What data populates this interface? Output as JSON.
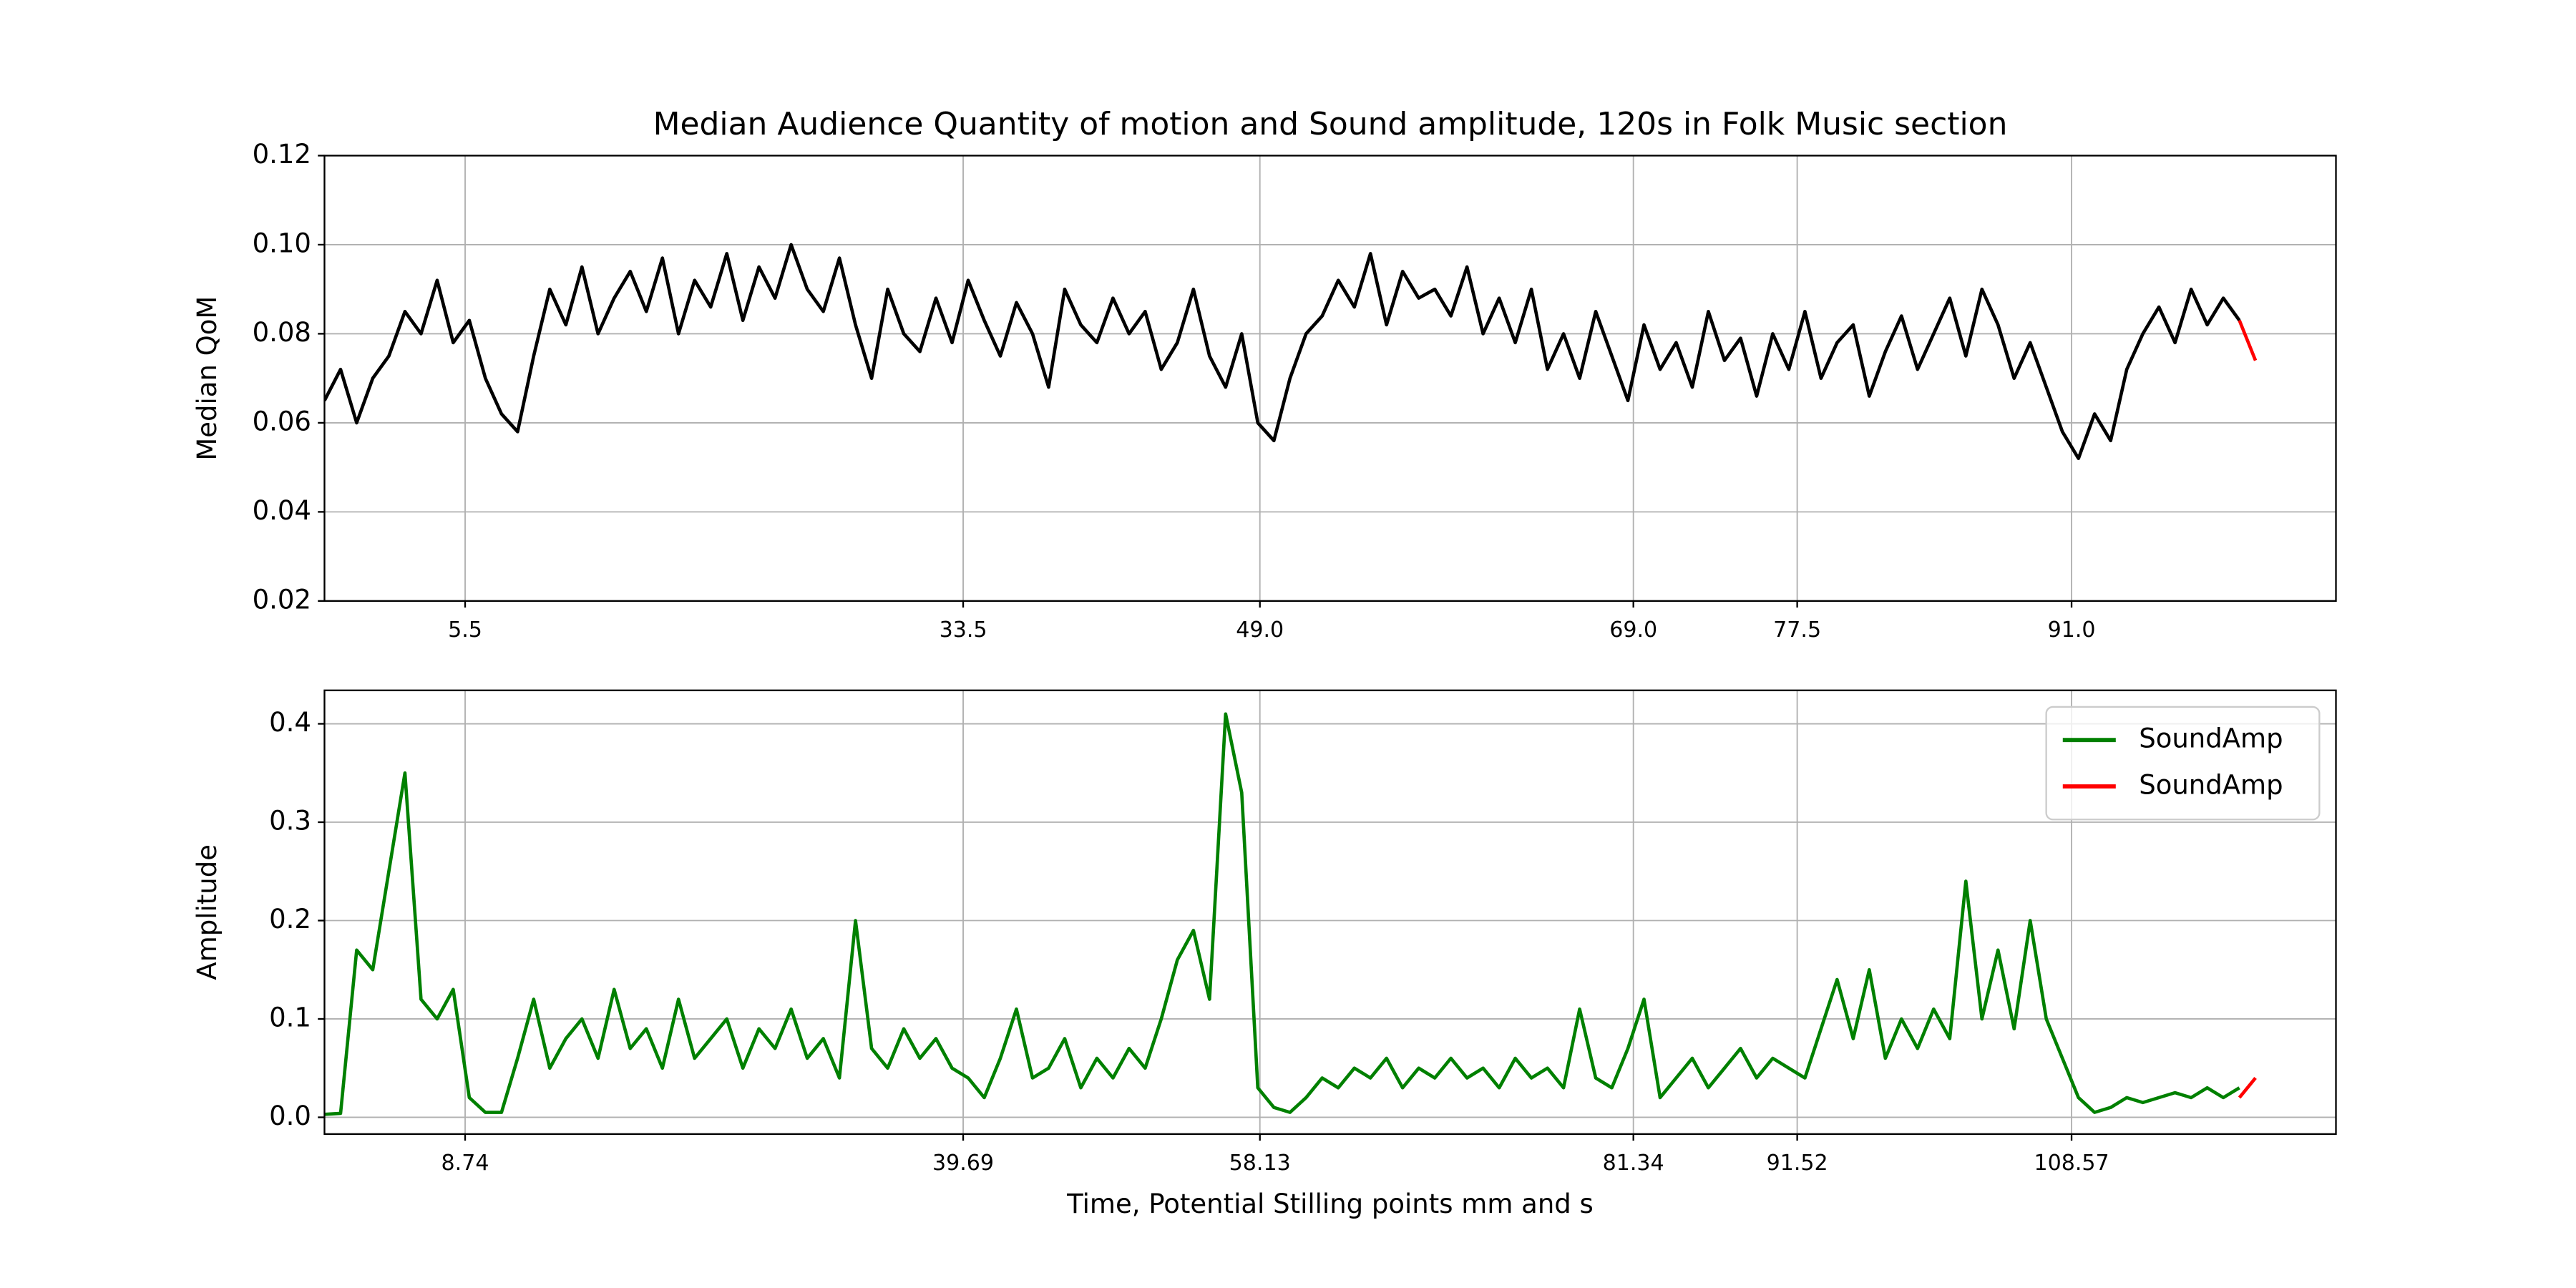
{
  "chart_data": [
    {
      "type": "line",
      "title": "Median Audience Quantity of motion and Sound amplitude, 120s in Folk Music section",
      "ylabel": "Median QoM",
      "xlim": [
        0,
        125
      ],
      "ylim": [
        0.02,
        0.12
      ],
      "xticks": [
        {
          "value": 8.74,
          "label": "5.5"
        },
        {
          "value": 39.69,
          "label": "33.5"
        },
        {
          "value": 58.13,
          "label": "49.0"
        },
        {
          "value": 81.34,
          "label": "69.0"
        },
        {
          "value": 91.52,
          "label": "77.5"
        },
        {
          "value": 108.57,
          "label": "91.0"
        }
      ],
      "yticks": [
        0.02,
        0.04,
        0.06,
        0.08,
        {
          "value": 0.1,
          "label": "0.10"
        },
        0.12
      ],
      "grid": true,
      "series": [
        {
          "color": "#000000",
          "x": [
            0,
            1,
            2,
            3,
            4,
            5,
            6,
            7,
            8,
            9,
            10,
            11,
            12,
            13,
            14,
            15,
            16,
            17,
            18,
            19,
            20,
            21,
            22,
            23,
            24,
            25,
            26,
            27,
            28,
            29,
            30,
            31,
            32,
            33,
            34,
            35,
            36,
            37,
            38,
            39,
            40,
            41,
            42,
            43,
            44,
            45,
            46,
            47,
            48,
            49,
            50,
            51,
            52,
            53,
            54,
            55,
            56,
            57,
            58,
            59,
            60,
            61,
            62,
            63,
            64,
            65,
            66,
            67,
            68,
            69,
            70,
            71,
            72,
            73,
            74,
            75,
            76,
            77,
            78,
            79,
            80,
            81,
            82,
            83,
            84,
            85,
            86,
            87,
            88,
            89,
            90,
            91,
            92,
            93,
            94,
            95,
            96,
            97,
            98,
            99,
            100,
            101,
            102,
            103,
            104,
            105,
            106,
            107,
            108,
            109,
            110,
            111,
            112,
            113,
            114,
            115,
            116,
            117,
            118,
            119
          ],
          "values": [
            0.065,
            0.072,
            0.06,
            0.07,
            0.075,
            0.085,
            0.08,
            0.092,
            0.078,
            0.083,
            0.07,
            0.062,
            0.058,
            0.075,
            0.09,
            0.082,
            0.095,
            0.08,
            0.088,
            0.094,
            0.085,
            0.097,
            0.08,
            0.092,
            0.086,
            0.098,
            0.083,
            0.095,
            0.088,
            0.1,
            0.09,
            0.085,
            0.097,
            0.082,
            0.07,
            0.09,
            0.08,
            0.076,
            0.088,
            0.078,
            0.092,
            0.083,
            0.075,
            0.087,
            0.08,
            0.068,
            0.09,
            0.082,
            0.078,
            0.088,
            0.08,
            0.085,
            0.072,
            0.078,
            0.09,
            0.075,
            0.068,
            0.08,
            0.06,
            0.056,
            0.07,
            0.08,
            0.084,
            0.092,
            0.086,
            0.098,
            0.082,
            0.094,
            0.088,
            0.09,
            0.084,
            0.095,
            0.08,
            0.088,
            0.078,
            0.09,
            0.072,
            0.08,
            0.07,
            0.085,
            0.075,
            0.065,
            0.082,
            0.072,
            0.078,
            0.068,
            0.085,
            0.074,
            0.079,
            0.066,
            0.08,
            0.072,
            0.085,
            0.07,
            0.078,
            0.082,
            0.066,
            0.076,
            0.084,
            0.072,
            0.08,
            0.088,
            0.075,
            0.09,
            0.082,
            0.07,
            0.078,
            0.068,
            0.058,
            0.052,
            0.062,
            0.056,
            0.072,
            0.08,
            0.086,
            0.078,
            0.09,
            0.082,
            0.088,
            0.083
          ]
        },
        {
          "color": "#ff0000",
          "x": [
            119,
            120
          ],
          "values": [
            0.083,
            0.074
          ]
        }
      ]
    },
    {
      "type": "line",
      "xlabel": "Time, Potential Stilling points mm and s",
      "ylabel": "Amplitude",
      "xlim": [
        0,
        125
      ],
      "ylim": [
        -0.017,
        0.434
      ],
      "xticks": [
        8.74,
        39.69,
        58.13,
        81.34,
        91.52,
        108.57
      ],
      "yticks": [
        {
          "value": 0,
          "label": "0.0"
        },
        0.1,
        0.2,
        0.3,
        0.4
      ],
      "grid": true,
      "legend": "upper right",
      "series": [
        {
          "name": "SoundAmp",
          "color": "#008000",
          "x": [
            0,
            1,
            2,
            3,
            4,
            5,
            6,
            7,
            8,
            9,
            10,
            11,
            12,
            13,
            14,
            15,
            16,
            17,
            18,
            19,
            20,
            21,
            22,
            23,
            24,
            25,
            26,
            27,
            28,
            29,
            30,
            31,
            32,
            33,
            34,
            35,
            36,
            37,
            38,
            39,
            40,
            41,
            42,
            43,
            44,
            45,
            46,
            47,
            48,
            49,
            50,
            51,
            52,
            53,
            54,
            55,
            56,
            57,
            58,
            59,
            60,
            61,
            62,
            63,
            64,
            65,
            66,
            67,
            68,
            69,
            70,
            71,
            72,
            73,
            74,
            75,
            76,
            77,
            78,
            79,
            80,
            81,
            82,
            83,
            84,
            85,
            86,
            87,
            88,
            89,
            90,
            91,
            92,
            93,
            94,
            95,
            96,
            97,
            98,
            99,
            100,
            101,
            102,
            103,
            104,
            105,
            106,
            107,
            108,
            109,
            110,
            111,
            112,
            113,
            114,
            115,
            116,
            117,
            118,
            119
          ],
          "values": [
            0.003,
            0.004,
            0.17,
            0.15,
            0.25,
            0.35,
            0.12,
            0.1,
            0.13,
            0.02,
            0.005,
            0.005,
            0.06,
            0.12,
            0.05,
            0.08,
            0.1,
            0.06,
            0.13,
            0.07,
            0.09,
            0.05,
            0.12,
            0.06,
            0.08,
            0.1,
            0.05,
            0.09,
            0.07,
            0.11,
            0.06,
            0.08,
            0.04,
            0.2,
            0.07,
            0.05,
            0.09,
            0.06,
            0.08,
            0.05,
            0.04,
            0.02,
            0.06,
            0.11,
            0.04,
            0.05,
            0.08,
            0.03,
            0.06,
            0.04,
            0.07,
            0.05,
            0.1,
            0.16,
            0.19,
            0.12,
            0.41,
            0.33,
            0.03,
            0.01,
            0.005,
            0.02,
            0.04,
            0.03,
            0.05,
            0.04,
            0.06,
            0.03,
            0.05,
            0.04,
            0.06,
            0.04,
            0.05,
            0.03,
            0.06,
            0.04,
            0.05,
            0.03,
            0.11,
            0.04,
            0.03,
            0.07,
            0.12,
            0.02,
            0.04,
            0.06,
            0.03,
            0.05,
            0.07,
            0.04,
            0.06,
            0.05,
            0.04,
            0.09,
            0.14,
            0.08,
            0.15,
            0.06,
            0.1,
            0.07,
            0.11,
            0.08,
            0.24,
            0.1,
            0.17,
            0.09,
            0.2,
            0.1,
            0.06,
            0.02,
            0.005,
            0.01,
            0.02,
            0.015,
            0.02,
            0.025,
            0.02,
            0.03,
            0.02,
            0.03
          ]
        },
        {
          "name": "SoundAmp",
          "color": "#ff0000",
          "x": [
            119,
            120
          ],
          "values": [
            0.02,
            0.04
          ]
        }
      ]
    }
  ]
}
